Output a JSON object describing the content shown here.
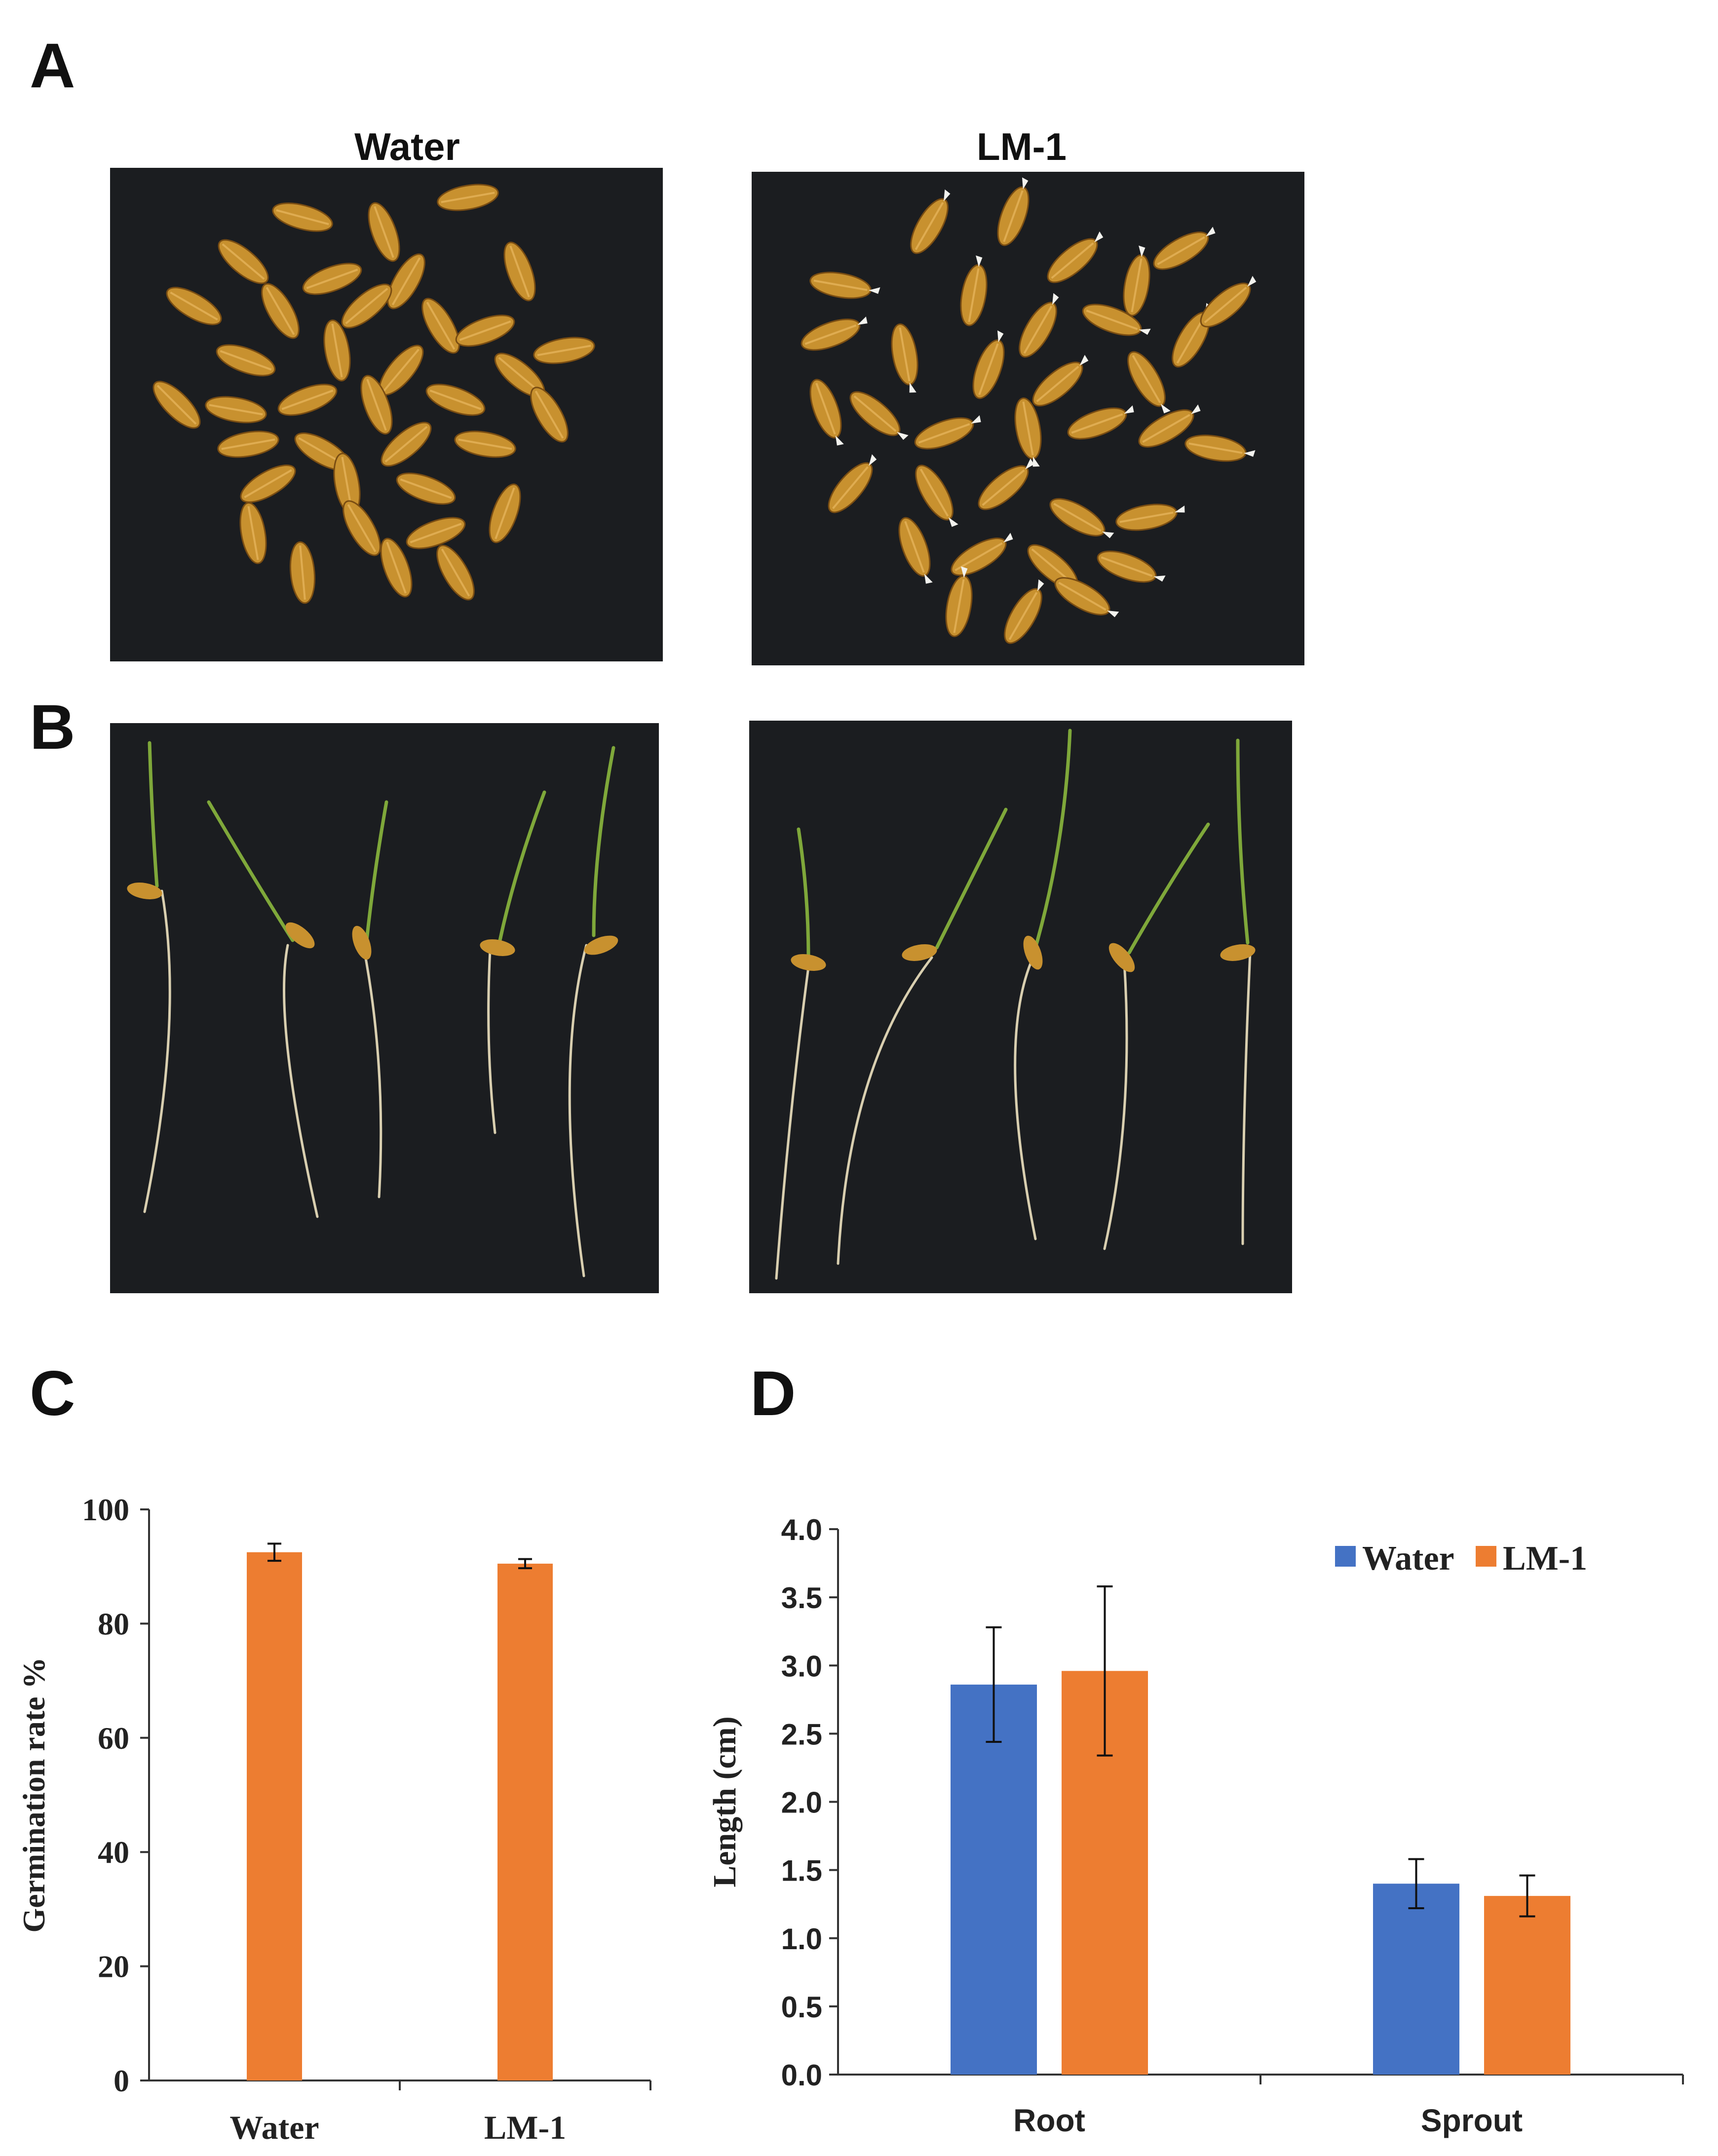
{
  "panels": {
    "a": {
      "letter": "A",
      "left_label": "Water",
      "right_label": "LM-1"
    },
    "b": {
      "letter": "B"
    },
    "c": {
      "letter": "C"
    },
    "d": {
      "letter": "D"
    }
  },
  "colors": {
    "water": "#4472c4",
    "lm1": "#ed7d31",
    "photo_bg": "#1b1d20",
    "seed": "#c8912f"
  },
  "chart_data": [
    {
      "type": "bar",
      "categories": [
        "Water",
        "LM-1"
      ],
      "values": [
        92.5,
        90.5
      ],
      "errors": [
        1.5,
        0.8
      ],
      "ylabel": "Germination rate %",
      "ylim": [
        0,
        100
      ],
      "yticks": [
        0,
        20,
        40,
        60,
        80,
        100
      ],
      "bar_color": "#ed7d31"
    },
    {
      "type": "bar",
      "categories": [
        "Root",
        "Sprout"
      ],
      "series": [
        {
          "name": "Water",
          "values": [
            2.86,
            1.4
          ],
          "errors": [
            0.42,
            0.18
          ],
          "color": "#4472c4"
        },
        {
          "name": "LM-1",
          "values": [
            2.96,
            1.31
          ],
          "errors": [
            0.62,
            0.15
          ],
          "color": "#ed7d31"
        }
      ],
      "ylabel": "Length (cm)",
      "ylim": [
        0,
        4
      ],
      "yticks": [
        "0.0",
        "0.5",
        "1.0",
        "1.5",
        "2.0",
        "2.5",
        "3.0",
        "3.5",
        "4.0"
      ],
      "legend_position": "top-right"
    }
  ]
}
